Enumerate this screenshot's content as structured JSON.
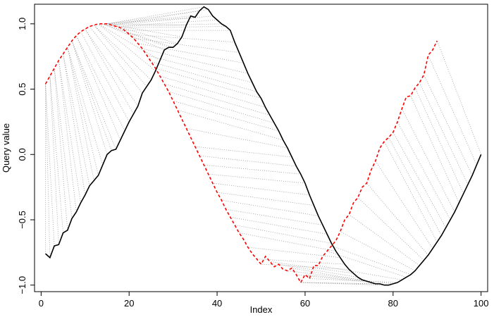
{
  "chart_data": {
    "type": "line",
    "title": "",
    "xlabel": "Index",
    "ylabel": "Query value",
    "xlim": [
      -1.5,
      101.5
    ],
    "ylim": [
      -1.05,
      1.15
    ],
    "xticks": [
      0,
      20,
      40,
      60,
      80,
      100
    ],
    "xtick_labels": [
      "0",
      "20",
      "40",
      "60",
      "80",
      "100"
    ],
    "yticks": [
      -1.0,
      -0.5,
      0.0,
      0.5,
      1.0
    ],
    "ytick_labels": [
      "−1.0",
      "−0.5",
      "0.0",
      "0.5",
      "1.0"
    ],
    "grid": false,
    "box": true,
    "series": [
      {
        "style": "solid",
        "color": "#000000",
        "points": [
          [
            1,
            -0.76
          ],
          [
            2,
            -0.79
          ],
          [
            3,
            -0.7
          ],
          [
            4,
            -0.69
          ],
          [
            5,
            -0.6
          ],
          [
            6,
            -0.58
          ],
          [
            7,
            -0.49
          ],
          [
            8,
            -0.44
          ],
          [
            9,
            -0.37
          ],
          [
            10,
            -0.31
          ],
          [
            11,
            -0.24
          ],
          [
            12,
            -0.2
          ],
          [
            13,
            -0.16
          ],
          [
            14,
            -0.08
          ],
          [
            15,
            0.0
          ],
          [
            16,
            0.03
          ],
          [
            17,
            0.04
          ],
          [
            18,
            0.11
          ],
          [
            19,
            0.18
          ],
          [
            20,
            0.25
          ],
          [
            21,
            0.31
          ],
          [
            22,
            0.37
          ],
          [
            23,
            0.47
          ],
          [
            24,
            0.52
          ],
          [
            25,
            0.57
          ],
          [
            26,
            0.64
          ],
          [
            27,
            0.72
          ],
          [
            28,
            0.8
          ],
          [
            29,
            0.82
          ],
          [
            30,
            0.82
          ],
          [
            31,
            0.85
          ],
          [
            32,
            0.9
          ],
          [
            33,
            0.99
          ],
          [
            34,
            1.06
          ],
          [
            35,
            1.05
          ],
          [
            36,
            1.1
          ],
          [
            37,
            1.13
          ],
          [
            38,
            1.11
          ],
          [
            39,
            1.06
          ],
          [
            40,
            1.03
          ],
          [
            41,
            1.0
          ],
          [
            42,
            0.98
          ],
          [
            43,
            0.95
          ],
          [
            44,
            0.86
          ],
          [
            45,
            0.78
          ],
          [
            46,
            0.7
          ],
          [
            47,
            0.62
          ],
          [
            48,
            0.55
          ],
          [
            49,
            0.48
          ],
          [
            50,
            0.43
          ],
          [
            51,
            0.36
          ],
          [
            52,
            0.3
          ],
          [
            53,
            0.24
          ],
          [
            54,
            0.18
          ],
          [
            55,
            0.11
          ],
          [
            56,
            0.05
          ],
          [
            57,
            -0.02
          ],
          [
            58,
            -0.09
          ],
          [
            59,
            -0.15
          ],
          [
            60,
            -0.22
          ],
          [
            61,
            -0.31
          ],
          [
            62,
            -0.39
          ],
          [
            63,
            -0.47
          ],
          [
            64,
            -0.54
          ],
          [
            65,
            -0.61
          ],
          [
            66,
            -0.68
          ],
          [
            67,
            -0.74
          ],
          [
            68,
            -0.79
          ],
          [
            69,
            -0.84
          ],
          [
            70,
            -0.88
          ],
          [
            71,
            -0.91
          ],
          [
            72,
            -0.94
          ],
          [
            73,
            -0.96
          ],
          [
            74,
            -0.97
          ],
          [
            75,
            -0.98
          ],
          [
            76,
            -0.99
          ],
          [
            77,
            -0.99
          ],
          [
            78,
            -1.0
          ],
          [
            79,
            -1.0
          ],
          [
            80,
            -0.99
          ],
          [
            81,
            -0.98
          ],
          [
            82,
            -0.96
          ],
          [
            83,
            -0.94
          ],
          [
            84,
            -0.92
          ],
          [
            85,
            -0.89
          ],
          [
            86,
            -0.85
          ],
          [
            87,
            -0.81
          ],
          [
            88,
            -0.77
          ],
          [
            89,
            -0.72
          ],
          [
            90,
            -0.67
          ],
          [
            91,
            -0.62
          ],
          [
            92,
            -0.56
          ],
          [
            93,
            -0.5
          ],
          [
            94,
            -0.44
          ],
          [
            95,
            -0.37
          ],
          [
            96,
            -0.3
          ],
          [
            97,
            -0.23
          ],
          [
            98,
            -0.16
          ],
          [
            99,
            -0.08
          ],
          [
            100,
            0.0
          ]
        ]
      },
      {
        "style": "dashed",
        "color": "#ff0000",
        "points": [
          [
            1,
            0.54
          ],
          [
            2,
            0.6
          ],
          [
            3,
            0.66
          ],
          [
            4,
            0.72
          ],
          [
            5,
            0.77
          ],
          [
            6,
            0.82
          ],
          [
            7,
            0.87
          ],
          [
            8,
            0.91
          ],
          [
            9,
            0.94
          ],
          [
            10,
            0.96
          ],
          [
            11,
            0.98
          ],
          [
            12,
            0.99
          ],
          [
            13,
            1.0
          ],
          [
            14,
            1.0
          ],
          [
            15,
            1.0
          ],
          [
            16,
            0.99
          ],
          [
            17,
            0.98
          ],
          [
            18,
            0.97
          ],
          [
            19,
            0.95
          ],
          [
            20,
            0.92
          ],
          [
            21,
            0.89
          ],
          [
            22,
            0.85
          ],
          [
            23,
            0.81
          ],
          [
            24,
            0.76
          ],
          [
            25,
            0.71
          ],
          [
            26,
            0.66
          ],
          [
            27,
            0.6
          ],
          [
            28,
            0.54
          ],
          [
            29,
            0.48
          ],
          [
            30,
            0.41
          ],
          [
            31,
            0.34
          ],
          [
            32,
            0.27
          ],
          [
            33,
            0.2
          ],
          [
            34,
            0.13
          ],
          [
            35,
            0.06
          ],
          [
            36,
            -0.01
          ],
          [
            37,
            -0.08
          ],
          [
            38,
            -0.15
          ],
          [
            39,
            -0.22
          ],
          [
            40,
            -0.29
          ],
          [
            41,
            -0.35
          ],
          [
            42,
            -0.42
          ],
          [
            43,
            -0.48
          ],
          [
            44,
            -0.54
          ],
          [
            45,
            -0.6
          ],
          [
            46,
            -0.65
          ],
          [
            47,
            -0.71
          ],
          [
            48,
            -0.76
          ],
          [
            49,
            -0.8
          ],
          [
            50,
            -0.84
          ],
          [
            51,
            -0.78
          ],
          [
            52,
            -0.82
          ],
          [
            53,
            -0.86
          ],
          [
            54,
            -0.84
          ],
          [
            55,
            -0.88
          ],
          [
            56,
            -0.89
          ],
          [
            57,
            -0.87
          ],
          [
            58,
            -0.92
          ],
          [
            59,
            -0.98
          ],
          [
            60,
            -0.92
          ],
          [
            61,
            -0.95
          ],
          [
            62,
            -0.85
          ],
          [
            63,
            -0.85
          ],
          [
            64,
            -0.78
          ],
          [
            65,
            -0.74
          ],
          [
            66,
            -0.7
          ],
          [
            67,
            -0.66
          ],
          [
            68,
            -0.59
          ],
          [
            69,
            -0.5
          ],
          [
            70,
            -0.46
          ],
          [
            71,
            -0.37
          ],
          [
            72,
            -0.33
          ],
          [
            73,
            -0.25
          ],
          [
            74,
            -0.22
          ],
          [
            75,
            -0.12
          ],
          [
            76,
            -0.05
          ],
          [
            77,
            0.05
          ],
          [
            78,
            0.1
          ],
          [
            79,
            0.13
          ],
          [
            80,
            0.17
          ],
          [
            81,
            0.25
          ],
          [
            82,
            0.35
          ],
          [
            83,
            0.44
          ],
          [
            84,
            0.45
          ],
          [
            85,
            0.51
          ],
          [
            86,
            0.55
          ],
          [
            87,
            0.61
          ],
          [
            88,
            0.76
          ],
          [
            89,
            0.8
          ],
          [
            90,
            0.87
          ]
        ]
      }
    ],
    "alignment": {
      "style": "dotted",
      "color": "#999999",
      "pairs": [
        [
          1,
          1
        ],
        [
          2,
          1
        ],
        [
          3,
          1
        ],
        [
          4,
          2
        ],
        [
          5,
          2
        ],
        [
          6,
          3
        ],
        [
          7,
          3
        ],
        [
          8,
          4
        ],
        [
          9,
          4
        ],
        [
          10,
          5
        ],
        [
          11,
          5
        ],
        [
          12,
          6
        ],
        [
          13,
          6
        ],
        [
          14,
          6
        ],
        [
          15,
          7
        ],
        [
          16,
          7
        ],
        [
          17,
          7
        ],
        [
          18,
          8
        ],
        [
          19,
          8
        ],
        [
          20,
          9
        ],
        [
          21,
          10
        ],
        [
          22,
          10
        ],
        [
          23,
          11
        ],
        [
          24,
          12
        ],
        [
          25,
          12
        ],
        [
          26,
          13
        ],
        [
          27,
          13
        ],
        [
          28,
          14
        ],
        [
          29,
          14
        ],
        [
          30,
          14
        ],
        [
          31,
          15
        ],
        [
          32,
          15
        ],
        [
          33,
          15
        ],
        [
          34,
          15
        ],
        [
          35,
          15
        ],
        [
          36,
          15
        ],
        [
          37,
          15
        ],
        [
          38,
          16
        ],
        [
          39,
          16
        ],
        [
          40,
          17
        ],
        [
          41,
          17
        ],
        [
          42,
          18
        ],
        [
          43,
          19
        ],
        [
          44,
          20
        ],
        [
          45,
          21
        ],
        [
          46,
          22
        ],
        [
          47,
          23
        ],
        [
          48,
          24
        ],
        [
          49,
          25
        ],
        [
          50,
          26
        ],
        [
          51,
          27
        ],
        [
          52,
          28
        ],
        [
          53,
          29
        ],
        [
          54,
          30
        ],
        [
          55,
          31
        ],
        [
          56,
          33
        ],
        [
          57,
          35
        ],
        [
          58,
          36
        ],
        [
          59,
          37
        ],
        [
          60,
          38
        ],
        [
          61,
          39
        ],
        [
          62,
          40
        ],
        [
          63,
          41
        ],
        [
          64,
          42
        ],
        [
          65,
          43
        ],
        [
          66,
          44
        ],
        [
          67,
          45
        ],
        [
          68,
          47
        ],
        [
          69,
          49
        ],
        [
          70,
          50
        ],
        [
          71,
          52
        ],
        [
          72,
          54
        ],
        [
          73,
          56
        ],
        [
          74,
          57
        ],
        [
          75,
          58
        ],
        [
          76,
          59
        ],
        [
          77,
          59
        ],
        [
          78,
          59
        ],
        [
          79,
          59
        ],
        [
          80,
          60
        ],
        [
          81,
          61
        ],
        [
          82,
          63
        ],
        [
          83,
          65
        ],
        [
          84,
          66
        ],
        [
          85,
          68
        ],
        [
          86,
          70
        ],
        [
          87,
          72
        ],
        [
          88,
          74
        ],
        [
          89,
          76
        ],
        [
          90,
          78
        ],
        [
          91,
          79
        ],
        [
          92,
          80
        ],
        [
          93,
          81
        ],
        [
          94,
          82
        ],
        [
          95,
          84
        ],
        [
          96,
          85
        ],
        [
          97,
          86
        ],
        [
          98,
          87
        ],
        [
          99,
          88
        ],
        [
          100,
          90
        ]
      ]
    },
    "colors": {
      "reference": "#000000",
      "query": "#ff0000",
      "alignment": "#999999",
      "frame": "#000000"
    }
  }
}
